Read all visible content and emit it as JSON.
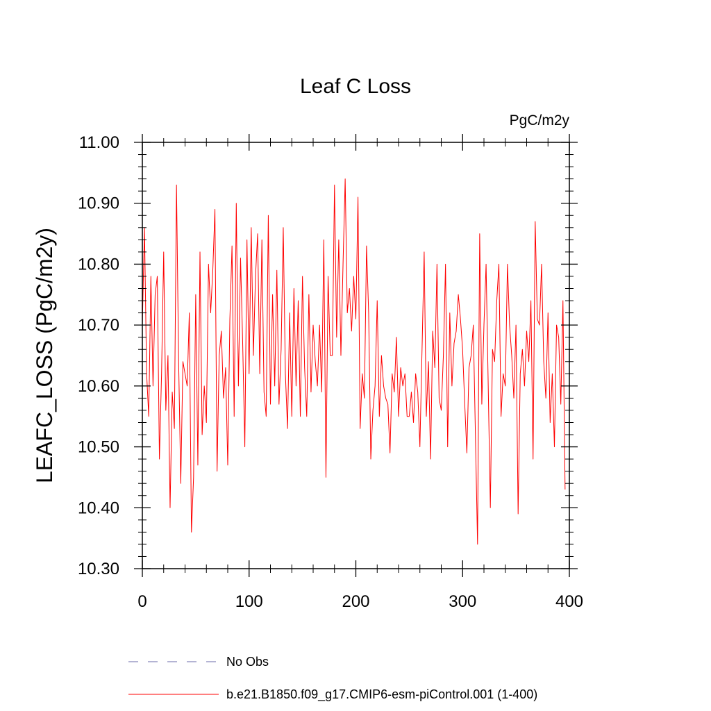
{
  "chart_data": {
    "type": "line",
    "title": "Leaf C Loss",
    "units": "PgC/m2y",
    "xlabel": "",
    "ylabel": "LEAFC_LOSS  (PgC/m2y)",
    "xlim": [
      0,
      400
    ],
    "ylim": [
      10.3,
      11.0
    ],
    "xticks": [
      0,
      100,
      200,
      300,
      400
    ],
    "xtick_labels": [
      "0",
      "100",
      "200",
      "300",
      "400"
    ],
    "yticks": [
      10.3,
      10.4,
      10.5,
      10.6,
      10.7,
      10.8,
      10.9,
      11.0
    ],
    "ytick_labels": [
      "10.30",
      "10.40",
      "10.50",
      "10.60",
      "10.70",
      "10.80",
      "10.90",
      "11.00"
    ],
    "grid": false,
    "legend": {
      "placement": "bottom",
      "entries": [
        {
          "label": "No Obs",
          "color": "#6a6aa8",
          "style": "dashed"
        },
        {
          "label": "b.e21.B1850.f09_g17.CMIP6-esm-piControl.001 (1-400)",
          "color": "#ff0000",
          "style": "solid"
        }
      ]
    },
    "series": [
      {
        "name": "b.e21.B1850.f09_g17.CMIP6-esm-piControl.001 (1-400)",
        "color": "#ff0000",
        "x_start": 0,
        "x_step": 2,
        "values": [
          10.7,
          10.86,
          10.62,
          10.55,
          10.78,
          10.6,
          10.75,
          10.78,
          10.48,
          10.62,
          10.82,
          10.56,
          10.65,
          10.4,
          10.59,
          10.53,
          10.93,
          10.64,
          10.44,
          10.64,
          10.62,
          10.6,
          10.72,
          10.36,
          10.45,
          10.75,
          10.47,
          10.82,
          10.52,
          10.6,
          10.54,
          10.8,
          10.72,
          10.79,
          10.89,
          10.46,
          10.65,
          10.69,
          10.58,
          10.63,
          10.47,
          10.71,
          10.83,
          10.55,
          10.9,
          10.6,
          10.81,
          10.67,
          10.5,
          10.84,
          10.62,
          10.86,
          10.65,
          10.78,
          10.85,
          10.62,
          10.84,
          10.59,
          10.55,
          10.88,
          10.57,
          10.75,
          10.6,
          10.79,
          10.57,
          10.66,
          10.86,
          10.62,
          10.53,
          10.72,
          10.55,
          10.76,
          10.6,
          10.74,
          10.55,
          10.78,
          10.63,
          10.55,
          10.75,
          10.59,
          10.7,
          10.64,
          10.6,
          10.7,
          10.59,
          10.84,
          10.45,
          10.78,
          10.65,
          10.65,
          10.93,
          10.68,
          10.84,
          10.65,
          10.8,
          10.94,
          10.72,
          10.76,
          10.69,
          10.78,
          10.71,
          10.91,
          10.53,
          10.62,
          10.58,
          10.83,
          10.72,
          10.48,
          10.56,
          10.6,
          10.74,
          10.55,
          10.65,
          10.6,
          10.58,
          10.57,
          10.49,
          10.62,
          10.59,
          10.68,
          10.55,
          10.63,
          10.6,
          10.62,
          10.55,
          10.55,
          10.59,
          10.54,
          10.62,
          10.59,
          10.5,
          10.66,
          10.82,
          10.55,
          10.64,
          10.48,
          10.69,
          10.63,
          10.8,
          10.58,
          10.56,
          10.65,
          10.8,
          10.5,
          10.72,
          10.6,
          10.67,
          10.69,
          10.75,
          10.71,
          10.66,
          10.57,
          10.49,
          10.63,
          10.65,
          10.7,
          10.52,
          10.34,
          10.85,
          10.57,
          10.7,
          10.8,
          10.6,
          10.4,
          10.66,
          10.64,
          10.74,
          10.8,
          10.55,
          10.62,
          10.6,
          10.8,
          10.7,
          10.65,
          10.58,
          10.7,
          10.39,
          10.62,
          10.66,
          10.6,
          10.69,
          10.64,
          10.74,
          10.48,
          10.87,
          10.71,
          10.7,
          10.8,
          10.64,
          10.58,
          10.72,
          10.54,
          10.62,
          10.5,
          10.7,
          10.68,
          10.57,
          10.74,
          10.43
        ]
      }
    ]
  }
}
